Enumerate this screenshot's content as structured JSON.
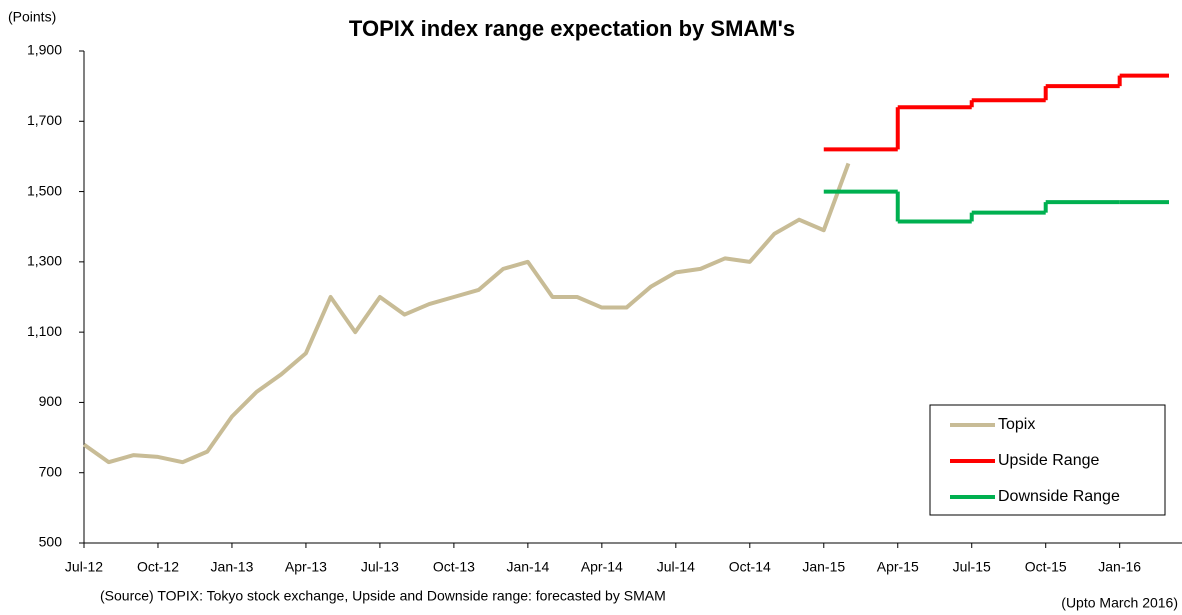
{
  "chart_data": {
    "type": "line",
    "title": "TOPIX index range expectation by SMAM's",
    "y_label": "(Points)",
    "annotations": [
      "(Source) TOPIX: Tokyo stock exchange, Upside and Downside range: forecasted by SMAM",
      "(Upto March 2016)"
    ],
    "xlim": [
      "2012-07",
      "2016-03"
    ],
    "xticks": [
      {
        "value": "2012-07",
        "label": "Jul-12"
      },
      {
        "value": "2012-10",
        "label": "Oct-12"
      },
      {
        "value": "2013-01",
        "label": "Jan-13"
      },
      {
        "value": "2013-04",
        "label": "Apr-13"
      },
      {
        "value": "2013-07",
        "label": "Jul-13"
      },
      {
        "value": "2013-10",
        "label": "Oct-13"
      },
      {
        "value": "2014-01",
        "label": "Jan-14"
      },
      {
        "value": "2014-04",
        "label": "Apr-14"
      },
      {
        "value": "2014-07",
        "label": "Jul-14"
      },
      {
        "value": "2014-10",
        "label": "Oct-14"
      },
      {
        "value": "2015-01",
        "label": "Jan-15"
      },
      {
        "value": "2015-04",
        "label": "Apr-15"
      },
      {
        "value": "2015-07",
        "label": "Jul-15"
      },
      {
        "value": "2015-10",
        "label": "Oct-15"
      },
      {
        "value": "2016-01",
        "label": "Jan-16"
      }
    ],
    "ylim": [
      500,
      1900
    ],
    "yticks": [
      500,
      700,
      900,
      {
        "value": 1100,
        "label": "1,100"
      },
      {
        "value": 1300,
        "label": "1,300"
      },
      {
        "value": 1500,
        "label": "1,500"
      },
      {
        "value": 1700,
        "label": "1,700"
      },
      {
        "value": 1900,
        "label": "1,900"
      }
    ],
    "grid": false,
    "legend": "lower right",
    "series": [
      {
        "name": "Topix",
        "color": "#c8bc96",
        "step": false,
        "x": [
          "2012-07",
          "2012-08",
          "2012-09",
          "2012-10",
          "2012-11",
          "2012-12",
          "2013-01",
          "2013-02",
          "2013-03",
          "2013-04",
          "2013-05",
          "2013-06",
          "2013-07",
          "2013-08",
          "2013-09",
          "2013-10",
          "2013-11",
          "2013-12",
          "2014-01",
          "2014-02",
          "2014-03",
          "2014-04",
          "2014-05",
          "2014-06",
          "2014-07",
          "2014-08",
          "2014-09",
          "2014-10",
          "2014-11",
          "2014-12",
          "2015-01",
          "2015-02"
        ],
        "values": [
          780,
          730,
          750,
          745,
          730,
          760,
          860,
          930,
          980,
          1040,
          1200,
          1100,
          1200,
          1150,
          1180,
          1200,
          1220,
          1280,
          1300,
          1200,
          1200,
          1170,
          1170,
          1230,
          1270,
          1280,
          1310,
          1300,
          1380,
          1420,
          1390,
          1580
        ]
      },
      {
        "name": "Upside Range",
        "color": "#ff0000",
        "step": true,
        "x": [
          "2015-01",
          "2015-04",
          "2015-07",
          "2015-10",
          "2016-01"
        ],
        "values": [
          1620,
          1740,
          1760,
          1800,
          1830
        ]
      },
      {
        "name": "Downside Range",
        "color": "#00b050",
        "step": true,
        "x": [
          "2015-01",
          "2015-04",
          "2015-07",
          "2015-10",
          "2016-01"
        ],
        "values": [
          1500,
          1415,
          1440,
          1470,
          1470
        ]
      }
    ]
  }
}
